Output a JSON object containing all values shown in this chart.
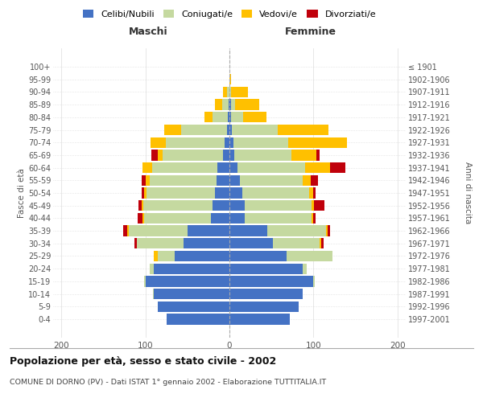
{
  "age_groups": [
    "0-4",
    "5-9",
    "10-14",
    "15-19",
    "20-24",
    "25-29",
    "30-34",
    "35-39",
    "40-44",
    "45-49",
    "50-54",
    "55-59",
    "60-64",
    "65-69",
    "70-74",
    "75-79",
    "80-84",
    "85-89",
    "90-94",
    "95-99",
    "100+"
  ],
  "birth_years": [
    "1997-2001",
    "1992-1996",
    "1987-1991",
    "1982-1986",
    "1977-1981",
    "1972-1976",
    "1967-1971",
    "1962-1966",
    "1957-1961",
    "1952-1956",
    "1947-1951",
    "1942-1946",
    "1937-1941",
    "1932-1936",
    "1927-1931",
    "1922-1926",
    "1917-1921",
    "1912-1916",
    "1907-1911",
    "1902-1906",
    "≤ 1901"
  ],
  "maschi": {
    "celibi": [
      75,
      85,
      90,
      100,
      90,
      65,
      55,
      50,
      22,
      20,
      17,
      15,
      14,
      8,
      6,
      3,
      2,
      1,
      0,
      0,
      0
    ],
    "coniugati": [
      0,
      0,
      1,
      2,
      5,
      20,
      55,
      70,
      80,
      83,
      82,
      80,
      78,
      72,
      70,
      55,
      18,
      8,
      3,
      0,
      0
    ],
    "vedovi": [
      0,
      0,
      0,
      0,
      0,
      5,
      0,
      2,
      2,
      2,
      3,
      5,
      12,
      5,
      18,
      20,
      10,
      8,
      5,
      0,
      0
    ],
    "divorziati": [
      0,
      0,
      0,
      0,
      0,
      0,
      3,
      5,
      5,
      3,
      3,
      5,
      0,
      8,
      0,
      0,
      0,
      0,
      0,
      0,
      0
    ]
  },
  "femmine": {
    "nubili": [
      72,
      82,
      87,
      100,
      87,
      68,
      52,
      45,
      18,
      18,
      15,
      12,
      10,
      6,
      5,
      3,
      2,
      2,
      0,
      0,
      0
    ],
    "coniugate": [
      0,
      0,
      0,
      2,
      5,
      55,
      55,
      70,
      80,
      80,
      80,
      75,
      80,
      68,
      65,
      55,
      14,
      5,
      2,
      0,
      0
    ],
    "vedove": [
      0,
      0,
      0,
      0,
      0,
      0,
      2,
      2,
      2,
      3,
      5,
      10,
      30,
      30,
      70,
      60,
      28,
      28,
      20,
      2,
      0
    ],
    "divorziate": [
      0,
      0,
      0,
      0,
      0,
      0,
      3,
      3,
      3,
      12,
      3,
      8,
      18,
      3,
      0,
      0,
      0,
      0,
      0,
      0,
      0
    ]
  },
  "colors": {
    "celibi": "#4472c4",
    "coniugati": "#c5d9a0",
    "vedovi": "#ffc000",
    "divorziati": "#c0000b"
  },
  "xlim": 210,
  "title": "Popolazione per età, sesso e stato civile - 2002",
  "subtitle": "COMUNE DI DORNO (PV) - Dati ISTAT 1° gennaio 2002 - Elaborazione TUTTITALIA.IT",
  "ylabel_left": "Fasce di età",
  "ylabel_right": "Anni di nascita",
  "xlabel_left": "Maschi",
  "xlabel_right": "Femmine",
  "bg_color": "#ffffff",
  "grid_color": "#cccccc"
}
